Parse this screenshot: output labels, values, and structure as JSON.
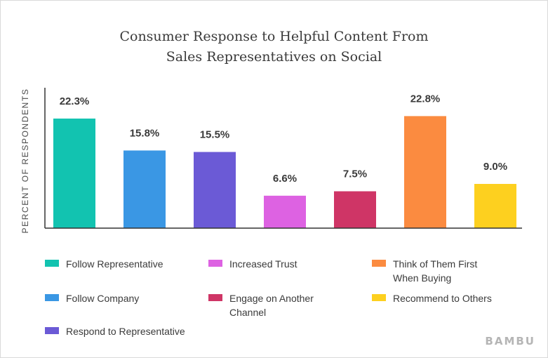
{
  "chart_data": {
    "type": "bar",
    "title_lines": [
      "Consumer Response to Helpful Content From",
      "Sales Representatives on Social"
    ],
    "ylabel": "PERCENT OF RESPONDENTS",
    "xlabel": "",
    "ylim": [
      0,
      25
    ],
    "grid": false,
    "legend_position": "bottom",
    "categories": [
      "Follow Representative",
      "Follow Company",
      "Respond to Representative",
      "Increased Trust",
      "Engage on Another Channel",
      "Think of Them First When Buying",
      "Recommend to Others"
    ],
    "values": [
      22.3,
      15.8,
      15.5,
      6.6,
      7.5,
      22.8,
      9.0
    ],
    "value_labels": [
      "22.3%",
      "15.8%",
      "15.5%",
      "6.6%",
      "7.5%",
      "22.8%",
      "9.0%"
    ],
    "colors": [
      "#12c3b0",
      "#3a97e4",
      "#6b5ad6",
      "#dd62e2",
      "#cf3566",
      "#fb8b40",
      "#fdd01f"
    ]
  },
  "legend": [
    {
      "label": "Follow Representative",
      "color": "#12c3b0"
    },
    {
      "label": "Increased Trust",
      "color": "#dd62e2"
    },
    {
      "label": "Think of Them First When Buying",
      "color": "#fb8b40"
    },
    {
      "label": "Follow Company",
      "color": "#3a97e4"
    },
    {
      "label": "Engage on Another Channel",
      "color": "#cf3566"
    },
    {
      "label": "Recommend to Others",
      "color": "#fdd01f"
    },
    {
      "label": "Respond to Representative",
      "color": "#6b5ad6"
    }
  ],
  "brand": "BAMBU"
}
